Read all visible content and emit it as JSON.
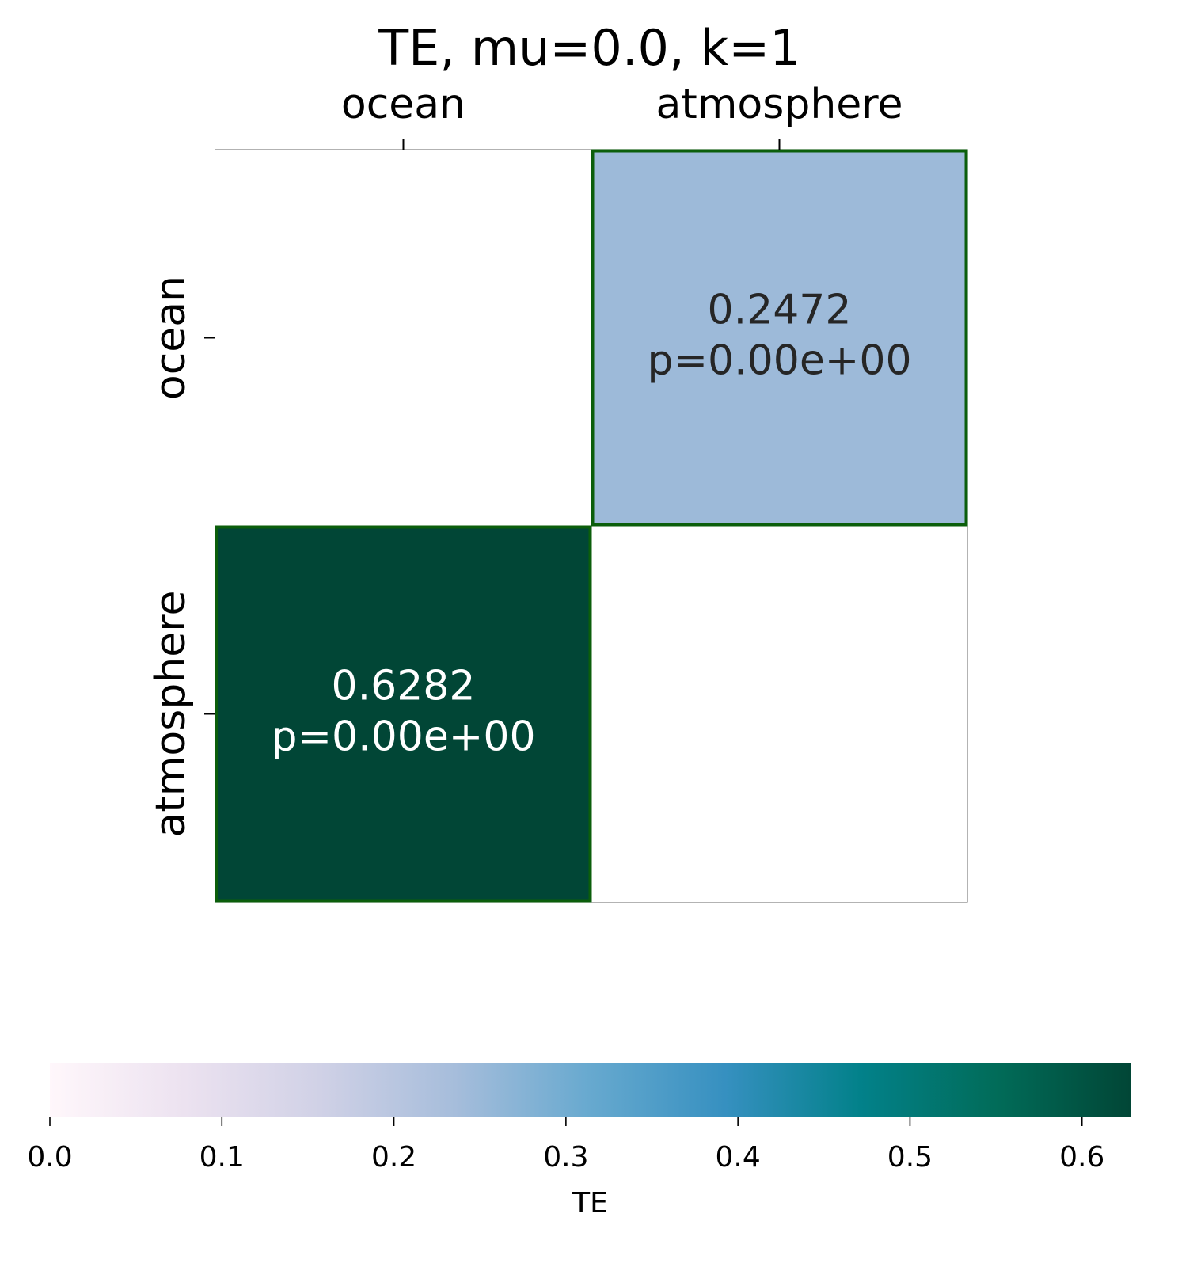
{
  "chart_data": {
    "type": "heatmap",
    "title": "TE, mu=0.0, k=1",
    "rows": [
      "ocean",
      "atmosphere"
    ],
    "columns": [
      "ocean",
      "atmosphere"
    ],
    "cells": [
      {
        "row": 0,
        "col": 0,
        "value": null,
        "label": "",
        "p_label": ""
      },
      {
        "row": 0,
        "col": 1,
        "value": 0.2472,
        "label": "0.2472",
        "p_label": "p=0.00e+00",
        "significant": true
      },
      {
        "row": 1,
        "col": 0,
        "value": 0.6282,
        "label": "0.6282",
        "p_label": "p=0.00e+00",
        "significant": true
      },
      {
        "row": 1,
        "col": 1,
        "value": null,
        "label": "",
        "p_label": ""
      }
    ],
    "colorbar": {
      "label": "TE",
      "range": [
        0,
        0.6282
      ],
      "ticks": [
        0.0,
        0.1,
        0.2,
        0.3,
        0.4,
        0.5,
        0.6
      ],
      "tick_labels": [
        "0.0",
        "0.1",
        "0.2",
        "0.3",
        "0.4",
        "0.5",
        "0.6"
      ],
      "orientation": "horizontal",
      "placement": "bottom"
    },
    "colormap": [
      "#fff7fb",
      "#ece2f0",
      "#d0d1e6",
      "#a6bddb",
      "#67a9cf",
      "#3690c0",
      "#02818a",
      "#016c59",
      "#014636"
    ],
    "highlight_color": "#0b5e0b",
    "grid_color": "#808080"
  }
}
